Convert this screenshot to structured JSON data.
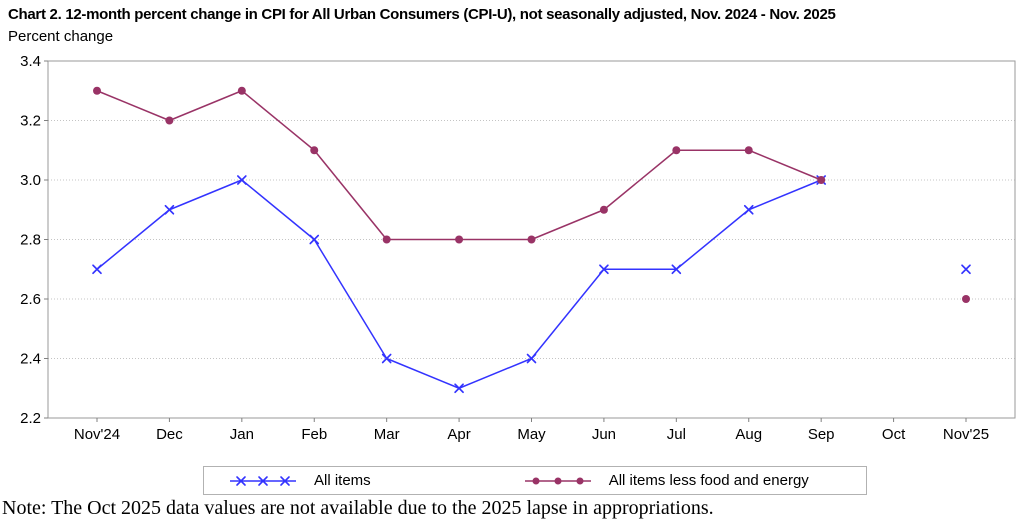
{
  "note": "Note: The Oct 2025 data values are not available due to the 2025 lapse in appropriations.",
  "chart_data": {
    "type": "line",
    "title": "Chart 2. 12-month percent change in CPI for All Urban Consumers (CPI-U), not seasonally adjusted, Nov. 2024 - Nov. 2025",
    "ylabel": "Percent change",
    "xlabel": "",
    "categories": [
      "Nov'24",
      "Dec",
      "Jan",
      "Feb",
      "Mar",
      "Apr",
      "May",
      "Jun",
      "Jul",
      "Aug",
      "Sep",
      "Oct",
      "Nov'25"
    ],
    "series": [
      {
        "name": "All items",
        "color": "#3333ff",
        "marker": "x",
        "values": [
          2.7,
          2.9,
          3.0,
          2.8,
          2.4,
          2.3,
          2.4,
          2.7,
          2.7,
          2.9,
          3.0,
          null,
          2.7
        ]
      },
      {
        "name": "All items less food and energy",
        "color": "#993366",
        "marker": "circle",
        "values": [
          3.3,
          3.2,
          3.3,
          3.1,
          2.8,
          2.8,
          2.8,
          2.9,
          3.1,
          3.1,
          3.0,
          null,
          2.6
        ]
      }
    ],
    "ylim": [
      2.2,
      3.4
    ],
    "yticks": [
      "3.4",
      "3.2",
      "3.0",
      "2.8",
      "2.6",
      "2.4",
      "2.2"
    ],
    "grid": true,
    "legend_position": "bottom",
    "missing_categories": [
      "Oct"
    ]
  },
  "colors": {
    "grid": "#c4c4c4",
    "axis_border": "#9a9a9a",
    "tick": "#808080",
    "text": "#000000"
  }
}
